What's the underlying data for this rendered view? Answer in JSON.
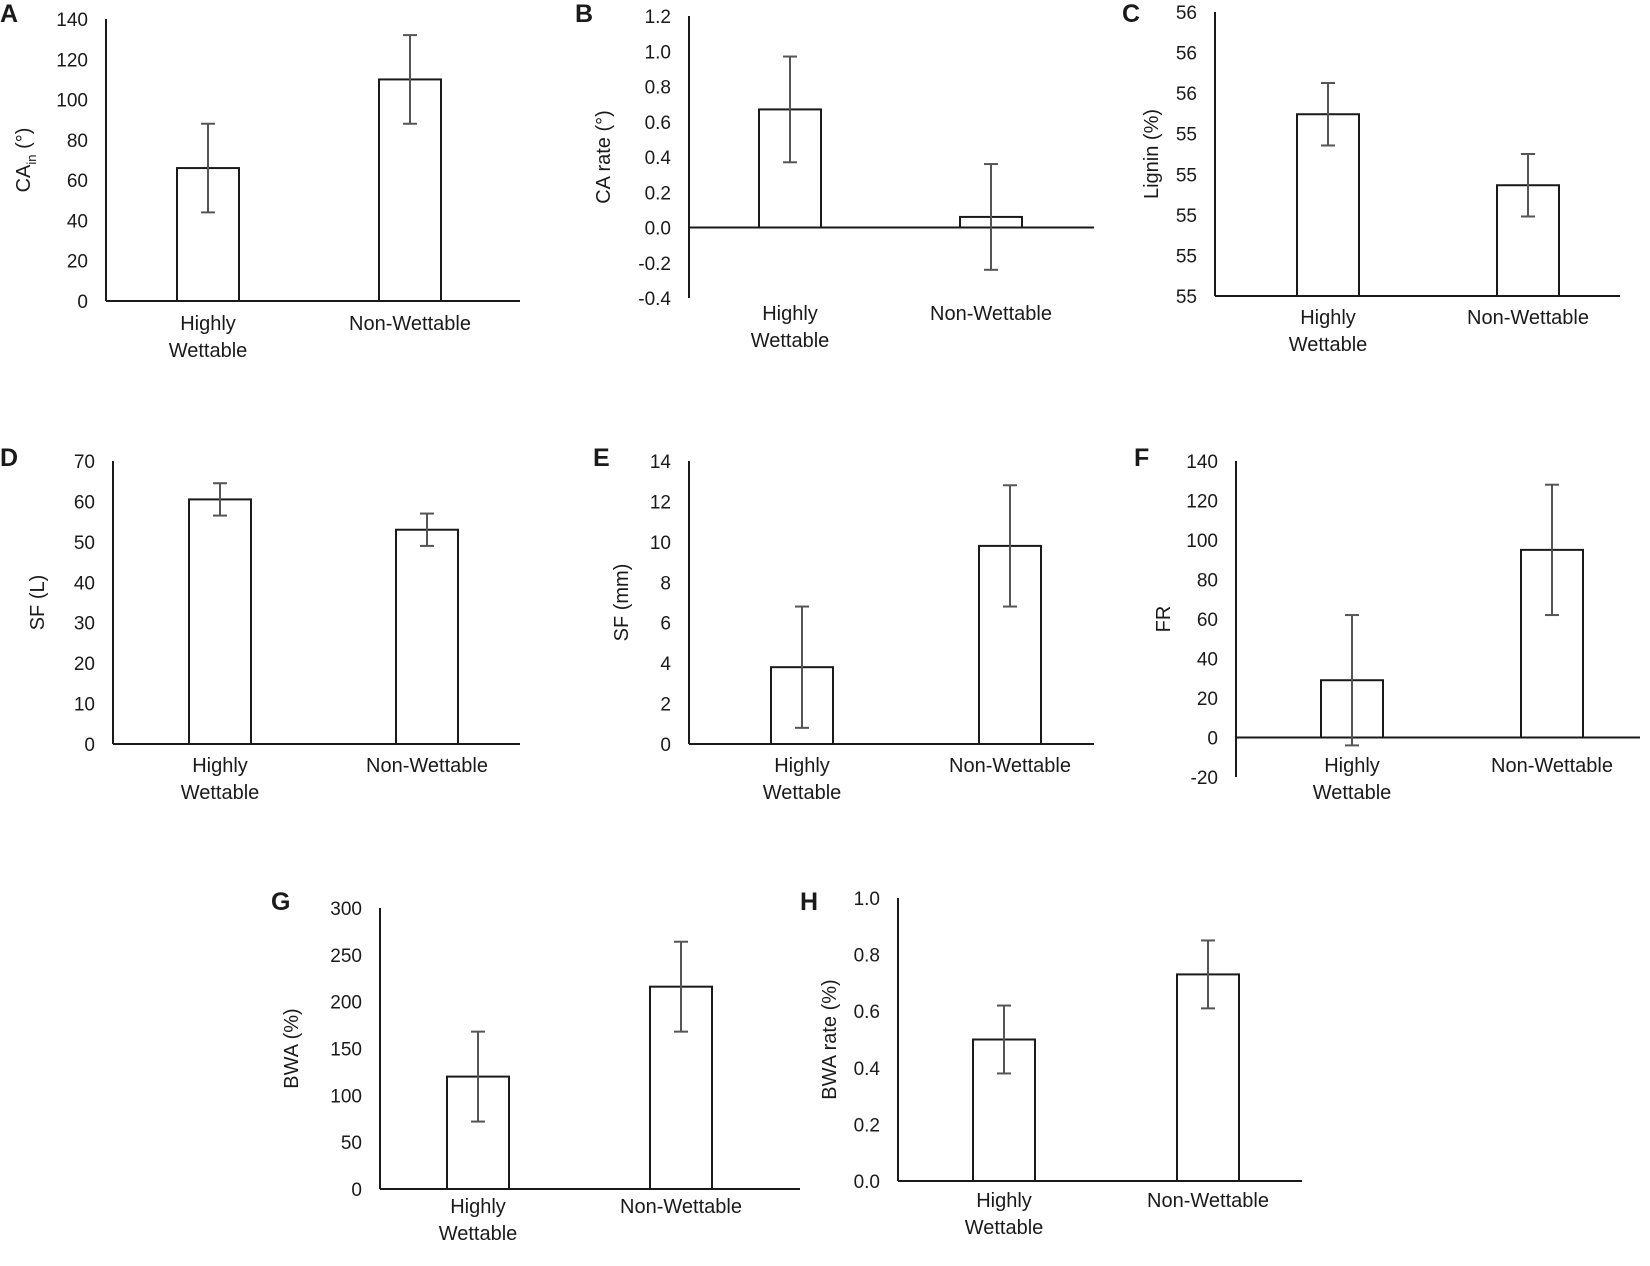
{
  "figure": {
    "panels": [
      "A",
      "B",
      "C",
      "D",
      "E",
      "F",
      "G",
      "H"
    ]
  },
  "chart_data": [
    {
      "panel": "A",
      "type": "bar",
      "ylabel_main": "CA",
      "ylabel_sub": "in",
      "ylabel_unit": " (°)",
      "categories": [
        [
          "Highly",
          "Wettable"
        ],
        [
          "Non-Wettable"
        ]
      ],
      "values": [
        66,
        110
      ],
      "errors": [
        22,
        22
      ],
      "ylim": [
        0,
        140
      ],
      "ticks": [
        "0",
        "20",
        "40",
        "60",
        "80",
        "100",
        "120",
        "140"
      ]
    },
    {
      "panel": "B",
      "type": "bar",
      "ylabel_main": "CA rate (°)",
      "categories": [
        [
          "Highly",
          "Wettable"
        ],
        [
          "Non-Wettable"
        ]
      ],
      "values": [
        0.67,
        0.06
      ],
      "errors": [
        0.3,
        0.3
      ],
      "ylim": [
        -0.4,
        1.2
      ],
      "ticks": [
        "-0.4",
        "-0.2",
        "0.0",
        "0.2",
        "0.4",
        "0.6",
        "0.8",
        "1.0",
        "1.2"
      ]
    },
    {
      "panel": "C",
      "type": "bar",
      "ylabel_main": "Lignin (%)",
      "categories": [
        [
          "Highly",
          "Wettable"
        ],
        [
          "Non-Wettable"
        ]
      ],
      "values": [
        55.84,
        55.59
      ],
      "errors": [
        0.11,
        0.11
      ],
      "ylim": [
        55.2,
        56.2
      ],
      "ticks": [
        "55",
        "55",
        "55",
        "55",
        "55",
        "56",
        "56",
        "56"
      ]
    },
    {
      "panel": "D",
      "type": "bar",
      "ylabel_main": "SF (L)",
      "categories": [
        [
          "Highly",
          "Wettable"
        ],
        [
          "Non-Wettable"
        ]
      ],
      "values": [
        60.5,
        53
      ],
      "errors": [
        4,
        4
      ],
      "ylim": [
        0,
        70
      ],
      "ticks": [
        "0",
        "10",
        "20",
        "30",
        "40",
        "50",
        "60",
        "70"
      ]
    },
    {
      "panel": "E",
      "type": "bar",
      "ylabel_main": "SF (mm)",
      "categories": [
        [
          "Highly",
          "Wettable"
        ],
        [
          "Non-Wettable"
        ]
      ],
      "values": [
        3.8,
        9.8
      ],
      "errors": [
        3,
        3
      ],
      "ylim": [
        0,
        14
      ],
      "ticks": [
        "0",
        "2",
        "4",
        "6",
        "8",
        "10",
        "12",
        "14"
      ]
    },
    {
      "panel": "F",
      "type": "bar",
      "ylabel_main": "FR",
      "categories": [
        [
          "Highly",
          "Wettable"
        ],
        [
          "Non-Wettable"
        ]
      ],
      "values": [
        29,
        95
      ],
      "errors": [
        33,
        33
      ],
      "ylim": [
        -20,
        140
      ],
      "ticks": [
        "-20",
        "0",
        "20",
        "40",
        "60",
        "80",
        "100",
        "120",
        "140"
      ]
    },
    {
      "panel": "G",
      "type": "bar",
      "ylabel_main": "BWA    (%)",
      "categories": [
        [
          "Highly",
          "Wettable"
        ],
        [
          "Non-Wettable"
        ]
      ],
      "values": [
        120,
        216
      ],
      "errors": [
        48,
        48
      ],
      "ylim": [
        0,
        300
      ],
      "ticks": [
        "0",
        "50",
        "100",
        "150",
        "200",
        "250",
        "300"
      ]
    },
    {
      "panel": "H",
      "type": "bar",
      "ylabel_main": "BWA rate (%)",
      "categories": [
        [
          "Highly",
          "Wettable"
        ],
        [
          "Non-Wettable"
        ]
      ],
      "values": [
        0.5,
        0.73
      ],
      "errors": [
        0.12,
        0.12
      ],
      "ylim": [
        0,
        1.0
      ],
      "ticks": [
        "0.0",
        "0.2",
        "0.4",
        "0.6",
        "0.8",
        "1.0"
      ]
    }
  ]
}
